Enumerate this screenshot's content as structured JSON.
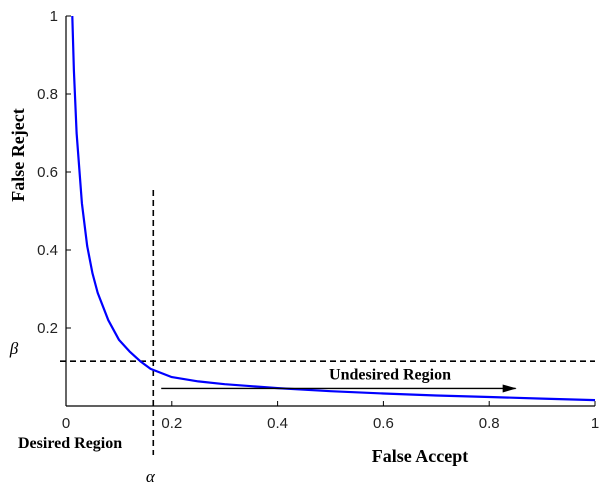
{
  "chart_data": {
    "type": "line",
    "xlabel": "False Accept",
    "ylabel": "False Reject",
    "xlim": [
      0,
      1
    ],
    "ylim": [
      0,
      1
    ],
    "x_ticks": [
      "0",
      "0.2",
      "0.4",
      "0.6",
      "0.8",
      "1"
    ],
    "y_ticks": [
      "0.2",
      "0.4",
      "0.6",
      "0.8",
      "1"
    ],
    "grid": false,
    "series": [
      {
        "color": "#0000ff",
        "x": [
          0.012,
          0.015,
          0.02,
          0.03,
          0.04,
          0.05,
          0.06,
          0.08,
          0.1,
          0.12,
          0.14,
          0.16,
          0.2,
          0.25,
          0.3,
          0.4,
          0.5,
          0.6,
          0.7,
          0.8,
          0.9,
          1.0
        ],
        "y": [
          1.0,
          0.86,
          0.7,
          0.52,
          0.41,
          0.34,
          0.29,
          0.22,
          0.17,
          0.14,
          0.115,
          0.095,
          0.074,
          0.063,
          0.056,
          0.046,
          0.038,
          0.032,
          0.027,
          0.023,
          0.019,
          0.015
        ]
      }
    ],
    "threshold_lines": {
      "alpha_x": 0.165,
      "beta_y": 0.115,
      "alpha_label": "α",
      "beta_label": "β",
      "style": "dashed"
    },
    "annotations": {
      "desired_region": "Desired Region",
      "undesired_region": "Undesired Region",
      "arrow_from_x": 0.18,
      "arrow_to_x": 0.85,
      "arrow_y": 0.045
    }
  }
}
